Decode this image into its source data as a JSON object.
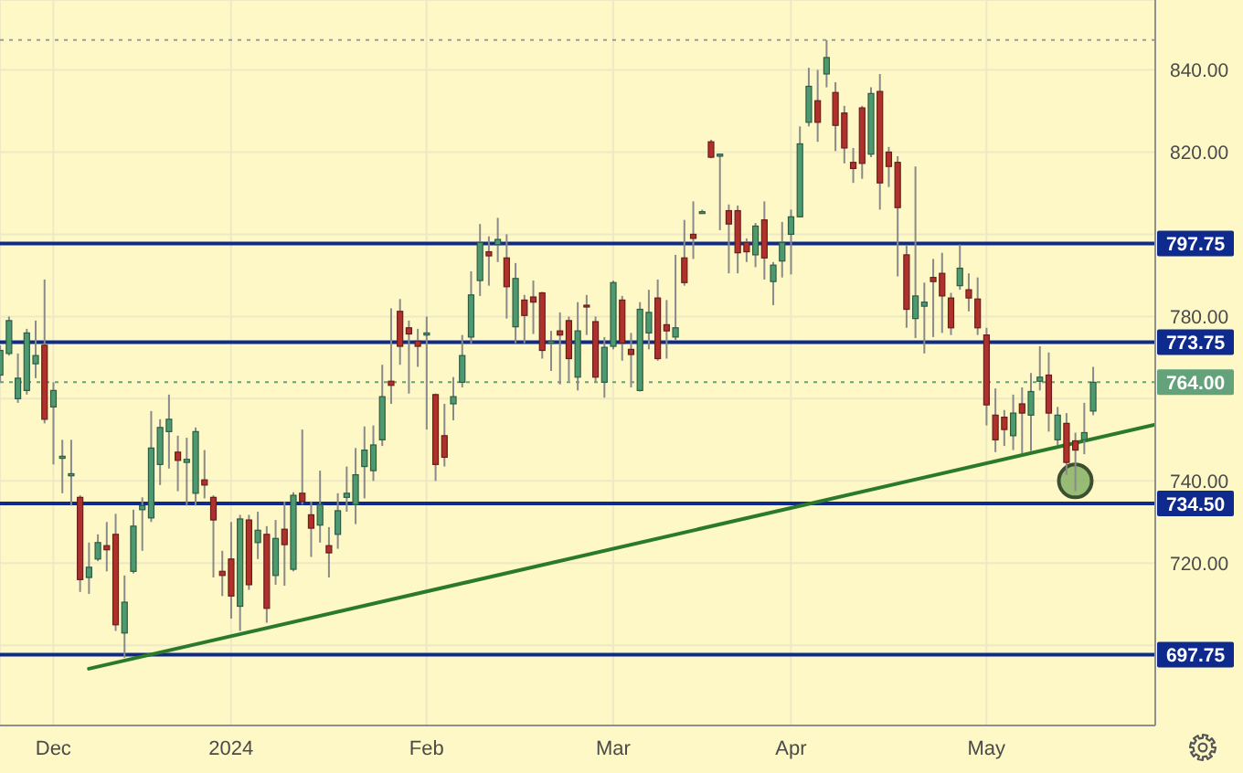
{
  "chart_data": {
    "type": "candlestick",
    "categories": [
      null,
      null,
      null,
      null,
      null,
      null,
      "Dec",
      null,
      null,
      null,
      null,
      null,
      null,
      null,
      null,
      null,
      null,
      null,
      null,
      null,
      null,
      null,
      null,
      null,
      null,
      null,
      "2024",
      null,
      null,
      null,
      null,
      null,
      null,
      null,
      null,
      null,
      null,
      null,
      null,
      null,
      null,
      null,
      null,
      null,
      null,
      null,
      null,
      null,
      "Feb",
      null,
      null,
      null,
      null,
      null,
      null,
      null,
      null,
      null,
      null,
      null,
      null,
      null,
      null,
      null,
      null,
      null,
      null,
      null,
      null,
      "Mar",
      null,
      null,
      null,
      null,
      null,
      null,
      null,
      null,
      null,
      null,
      null,
      null,
      null,
      null,
      null,
      null,
      null,
      null,
      null,
      "Apr",
      null,
      null,
      null,
      null,
      null,
      null,
      null,
      null,
      null,
      null,
      null,
      null,
      null,
      null,
      null,
      null,
      null,
      null,
      null,
      null,
      null,
      "May",
      null,
      null,
      null,
      null,
      null,
      null,
      null,
      null,
      null,
      null,
      null,
      null,
      null,
      null,
      null,
      null,
      null,
      null,
      null
    ],
    "ohlc": [
      [
        765.75,
        773,
        764,
        771.75
      ],
      [
        771,
        780,
        770.5,
        779
      ],
      [
        760,
        771,
        759,
        765
      ],
      [
        762,
        777,
        761,
        776
      ],
      [
        768.5,
        779,
        765,
        770.5
      ],
      [
        773,
        789,
        754,
        755
      ],
      [
        758,
        764,
        744,
        762
      ],
      [
        745.5,
        750,
        737,
        746
      ],
      [
        741.25,
        750,
        734,
        741.75
      ],
      [
        736,
        736.5,
        713,
        716
      ],
      [
        716.5,
        725,
        712.5,
        719
      ],
      [
        721,
        727,
        720.5,
        725
      ],
      [
        724.25,
        730,
        718,
        723.25
      ],
      [
        727,
        732,
        703.5,
        705
      ],
      [
        703,
        717,
        697,
        710.5
      ],
      [
        718,
        733,
        717.5,
        729
      ],
      [
        733,
        736,
        723,
        734
      ],
      [
        731,
        757,
        730,
        748
      ],
      [
        744,
        755,
        739,
        753
      ],
      [
        752,
        761,
        743,
        755
      ],
      [
        747,
        751,
        737.5,
        745
      ],
      [
        744.5,
        750.5,
        734,
        745.25
      ],
      [
        737,
        753,
        734,
        752
      ],
      [
        740.25,
        747.5,
        735.75,
        739
      ],
      [
        736,
        736.5,
        716.5,
        730.5
      ],
      [
        718,
        723,
        712,
        717
      ],
      [
        721,
        730,
        706.5,
        712
      ],
      [
        709.5,
        731.75,
        703.5,
        730.75
      ],
      [
        730.5,
        731.75,
        713.5,
        714.75
      ],
      [
        725,
        732.5,
        721,
        728
      ],
      [
        727,
        729,
        705.5,
        709
      ],
      [
        717,
        730.5,
        714.75,
        726
      ],
      [
        728.25,
        735,
        714.5,
        724.5
      ],
      [
        718.5,
        737.25,
        718,
        736.5
      ],
      [
        737,
        752.5,
        734.25,
        735
      ],
      [
        731.75,
        735,
        721.5,
        728.5
      ],
      [
        729.25,
        742.5,
        725,
        734.25
      ],
      [
        724.25,
        728.75,
        716.5,
        722.5
      ],
      [
        727,
        737,
        723.5,
        732.75
      ],
      [
        736,
        743.5,
        732.5,
        737
      ],
      [
        734.25,
        748,
        729.5,
        741.5
      ],
      [
        743.5,
        753.25,
        735.75,
        747.5
      ],
      [
        742.5,
        753.5,
        740,
        748.75
      ],
      [
        750,
        768.25,
        748.5,
        760.5
      ],
      [
        764.25,
        782,
        758.75,
        763.25
      ],
      [
        781.25,
        784.25,
        768.25,
        772.75
      ],
      [
        777.25,
        779,
        761.25,
        775.75
      ],
      [
        774,
        777,
        767.75,
        772.75
      ],
      [
        775.5,
        780,
        752.5,
        776
      ],
      [
        761,
        761.25,
        740,
        744
      ],
      [
        751,
        758.75,
        743.5,
        745.75
      ],
      [
        758.75,
        765.25,
        754.75,
        760.5
      ],
      [
        764,
        775.5,
        762.75,
        770.5
      ],
      [
        775,
        791,
        773.25,
        785.25
      ],
      [
        788.75,
        802.5,
        785,
        798
      ],
      [
        795.75,
        799.5,
        787.5,
        794.75
      ],
      [
        797.5,
        804,
        793.25,
        798.75
      ],
      [
        794.25,
        800,
        779.5,
        787.25
      ],
      [
        777.5,
        793,
        773.5,
        789.25
      ],
      [
        784,
        785.25,
        773.5,
        780.25
      ],
      [
        784.75,
        788.75,
        775.75,
        783.5
      ],
      [
        785.75,
        786,
        769.75,
        771.75
      ],
      [
        773.5,
        776.5,
        766.75,
        774
      ],
      [
        776.5,
        781,
        763.5,
        775.5
      ],
      [
        779,
        780,
        764.25,
        769.75
      ],
      [
        765.25,
        783.5,
        762,
        776.5
      ],
      [
        782.75,
        785.25,
        775.5,
        782.5
      ],
      [
        778.75,
        780,
        764,
        765.25
      ],
      [
        764,
        775,
        760.25,
        772.5
      ],
      [
        772.75,
        788.75,
        772,
        788.25
      ],
      [
        784,
        785,
        769.25,
        773.5
      ],
      [
        772,
        776,
        762.75,
        770.75
      ],
      [
        762,
        783.5,
        761.75,
        781.75
      ],
      [
        776,
        786.5,
        772,
        781
      ],
      [
        784.5,
        789,
        769.25,
        769.75
      ],
      [
        778,
        784,
        769.75,
        776.5
      ],
      [
        775,
        795,
        774.25,
        777.25
      ],
      [
        794.25,
        803.5,
        787.5,
        788.25
      ],
      [
        800,
        808,
        794,
        799
      ],
      [
        805.25,
        806,
        805,
        805.5
      ],
      [
        822.5,
        823,
        818.5,
        818.75
      ],
      [
        819,
        819.5,
        801,
        819.5
      ],
      [
        805.75,
        807.25,
        790.5,
        802.5
      ],
      [
        805.75,
        807,
        790.5,
        795.5
      ],
      [
        798,
        799,
        793.25,
        795.75
      ],
      [
        795,
        802.75,
        792,
        802
      ],
      [
        803.5,
        808,
        789,
        794.25
      ],
      [
        788.5,
        793.25,
        782.75,
        792.5
      ],
      [
        793.5,
        803,
        789.5,
        798
      ],
      [
        800,
        806,
        790.25,
        804.25
      ],
      [
        804.25,
        826.25,
        804.25,
        822
      ],
      [
        827.25,
        840.5,
        826.25,
        836
      ],
      [
        832.5,
        840,
        822.5,
        827.25
      ],
      [
        839,
        847.25,
        835.75,
        843
      ],
      [
        834.5,
        837,
        820.25,
        826.5
      ],
      [
        829.5,
        831.25,
        817.25,
        821
      ],
      [
        817.5,
        821,
        812.5,
        816
      ],
      [
        830.75,
        831.25,
        813.5,
        817.25
      ],
      [
        819.5,
        835.75,
        818.75,
        834.25
      ],
      [
        834.75,
        839,
        806,
        812.5
      ],
      [
        820,
        821.25,
        811.5,
        816.5
      ],
      [
        817.5,
        819,
        789.75,
        806.5
      ],
      [
        795,
        797.25,
        777.25,
        781.75
      ],
      [
        779.5,
        816.5,
        774.75,
        785
      ],
      [
        782.5,
        788.25,
        771,
        783.5
      ],
      [
        789.5,
        794,
        775,
        788.5
      ],
      [
        790.5,
        795.5,
        776,
        785
      ],
      [
        784.5,
        785.75,
        775.5,
        777.25
      ],
      [
        787.5,
        797.5,
        786.5,
        791.75
      ],
      [
        786.5,
        790.5,
        781.25,
        784.5
      ],
      [
        784.25,
        789.5,
        775.5,
        777.25
      ],
      [
        775.5,
        777.25,
        753.5,
        758.5
      ],
      [
        756,
        762.5,
        747,
        750
      ],
      [
        755.5,
        757.25,
        748.5,
        752.5
      ],
      [
        751,
        761,
        747.5,
        756.5
      ],
      [
        758.75,
        762.75,
        746.75,
        756.5
      ],
      [
        756,
        766.25,
        747.25,
        761.75
      ],
      [
        764.25,
        772.75,
        762,
        765.25
      ],
      [
        765.75,
        771.25,
        752,
        756.5
      ],
      [
        750,
        758,
        748.75,
        756
      ],
      [
        754,
        756.5,
        741.5,
        744.5
      ],
      [
        749.75,
        751.75,
        737.5,
        747.5
      ],
      [
        750,
        759,
        746.5,
        751.75
      ],
      [
        757,
        767.75,
        756,
        764
      ],
      null,
      null,
      null,
      null,
      null,
      null,
      null
    ],
    "colors": [
      "#4d9a70",
      "#4d9a70",
      "#4d9a70",
      "#4d9a70",
      "#4d9a70",
      "#b0302c",
      "#4d9a70",
      "#4d9a70",
      "#4d9a70",
      "#b0302c",
      "#4d9a70",
      "#4d9a70",
      "#b0302c",
      "#b0302c",
      "#4d9a70",
      "#4d9a70",
      "#4d9a70",
      "#4d9a70",
      "#4d9a70",
      "#4d9a70",
      "#b0302c",
      "#4d9a70",
      "#4d9a70",
      "#b0302c",
      "#b0302c",
      "#b0302c",
      "#b0302c",
      "#4d9a70",
      "#b0302c",
      "#4d9a70",
      "#b0302c",
      "#4d9a70",
      "#b0302c",
      "#4d9a70",
      "#b0302c",
      "#b0302c",
      "#4d9a70",
      "#b0302c",
      "#4d9a70",
      "#4d9a70",
      "#4d9a70",
      "#4d9a70",
      "#4d9a70",
      "#4d9a70",
      "#b0302c",
      "#b0302c",
      "#b0302c",
      "#b0302c",
      "#4d9a70",
      "#b0302c",
      "#b0302c",
      "#4d9a70",
      "#4d9a70",
      "#4d9a70",
      "#4d9a70",
      "#b0302c",
      "#4d9a70",
      "#b0302c",
      "#4d9a70",
      "#b0302c",
      "#b0302c",
      "#b0302c",
      "#4d9a70",
      "#b0302c",
      "#b0302c",
      "#4d9a70",
      "#b0302c",
      "#b0302c",
      "#4d9a70",
      "#4d9a70",
      "#b0302c",
      "#b0302c",
      "#4d9a70",
      "#4d9a70",
      "#b0302c",
      "#b0302c",
      "#4d9a70",
      "#b0302c",
      "#b0302c",
      "#4d9a70",
      "#b0302c",
      "#4d9a70",
      "#b0302c",
      "#b0302c",
      "#b0302c",
      "#4d9a70",
      "#b0302c",
      "#4d9a70",
      "#4d9a70",
      "#4d9a70",
      "#4d9a70",
      "#4d9a70",
      "#b0302c",
      "#4d9a70",
      "#b0302c",
      "#b0302c",
      "#b0302c",
      "#b0302c",
      "#4d9a70",
      "#b0302c",
      "#b0302c",
      "#b0302c",
      "#b0302c",
      "#4d9a70",
      "#4d9a70",
      "#b0302c",
      "#b0302c",
      "#b0302c",
      "#4d9a70",
      "#b0302c",
      "#b0302c",
      "#b0302c",
      "#b0302c",
      "#b0302c",
      "#4d9a70",
      "#b0302c",
      "#4d9a70",
      "#4d9a70",
      "#b0302c",
      "#4d9a70",
      "#b0302c",
      "#b0302c",
      "#4d9a70",
      "#4d9a70",
      null,
      null,
      null,
      null,
      null,
      null,
      null
    ],
    "series": [
      {
        "type": "line",
        "color": "#2b7a2b",
        "line_style": "solid",
        "values": [
          null,
          null,
          null,
          null,
          null,
          null,
          null,
          null,
          null,
          null,
          694.3,
          null,
          null,
          null,
          null,
          null,
          null,
          null,
          null,
          null,
          null,
          null,
          null,
          null,
          null,
          null,
          null,
          null,
          null,
          null,
          null,
          null,
          null,
          null,
          null,
          null,
          null,
          null,
          null,
          null,
          null,
          null,
          null,
          null,
          null,
          null,
          null,
          null,
          null,
          null,
          null,
          null,
          null,
          null,
          null,
          null,
          null,
          null,
          null,
          null,
          null,
          null,
          null,
          null,
          null,
          null,
          null,
          null,
          null,
          null,
          null,
          null,
          null,
          null,
          null,
          null,
          null,
          null,
          null,
          null,
          null,
          null,
          null,
          null,
          null,
          null,
          null,
          null,
          null,
          null,
          null,
          null,
          null,
          null,
          null,
          null,
          null,
          null,
          null,
          null,
          null,
          null,
          null,
          null,
          null,
          null,
          null,
          null,
          null,
          null,
          null,
          null,
          null,
          null,
          null,
          null,
          null,
          null,
          null,
          null,
          null,
          null,
          null,
          null,
          null,
          null,
          null,
          null,
          null,
          null,
          753.7
        ]
      },
      {
        "type": "scatter",
        "color": "#86b066",
        "marker": "circle",
        "values": [
          null,
          null,
          null,
          null,
          null,
          null,
          null,
          null,
          null,
          null,
          null,
          null,
          null,
          null,
          null,
          null,
          null,
          null,
          null,
          null,
          null,
          null,
          null,
          null,
          null,
          null,
          null,
          null,
          null,
          null,
          null,
          null,
          null,
          null,
          null,
          null,
          null,
          null,
          null,
          null,
          null,
          null,
          null,
          null,
          null,
          null,
          null,
          null,
          null,
          null,
          null,
          null,
          null,
          null,
          null,
          null,
          null,
          null,
          null,
          null,
          null,
          null,
          null,
          null,
          null,
          null,
          null,
          null,
          null,
          null,
          null,
          null,
          null,
          null,
          null,
          null,
          null,
          null,
          null,
          null,
          null,
          null,
          null,
          null,
          null,
          null,
          null,
          null,
          null,
          null,
          null,
          null,
          null,
          null,
          null,
          null,
          null,
          null,
          null,
          null,
          null,
          null,
          null,
          null,
          null,
          null,
          null,
          null,
          null,
          null,
          null,
          null,
          null,
          null,
          null,
          null,
          null,
          null,
          null,
          null,
          null,
          740,
          null,
          null,
          null,
          null,
          null,
          null,
          null,
          null,
          null
        ]
      }
    ],
    "ylim": [
      680.5,
      857
    ],
    "yticks": [
      {
        "value": 700,
        "label": null
      },
      {
        "value": 720,
        "label": "720.00"
      },
      {
        "value": 740,
        "label": "740.00"
      },
      {
        "value": 760,
        "label": null
      },
      {
        "value": 780,
        "label": "780.00"
      },
      {
        "value": 800,
        "label": null
      },
      {
        "value": 820,
        "label": "820.00"
      },
      {
        "value": 840,
        "label": "840.00"
      }
    ],
    "grid": true,
    "ref_lines": [
      {
        "axis": "y",
        "value": 847.25,
        "color": "#9a9a9a",
        "line_style": "dotted"
      },
      {
        "axis": "y",
        "value": 797.75,
        "label": "797.75",
        "color": "#0d2a8c"
      },
      {
        "axis": "y",
        "value": 773.75,
        "label": "773.75",
        "color": "#0d2a8c"
      },
      {
        "axis": "y",
        "value": 764,
        "label": "764.00",
        "color": "#64a27c",
        "line_style": "dotted"
      },
      {
        "axis": "y",
        "value": 734.5,
        "label": "734.50",
        "color": "#0d2a8c"
      },
      {
        "axis": "y",
        "value": 697.75,
        "label": "697.75",
        "color": "#0d2a8c"
      }
    ]
  }
}
